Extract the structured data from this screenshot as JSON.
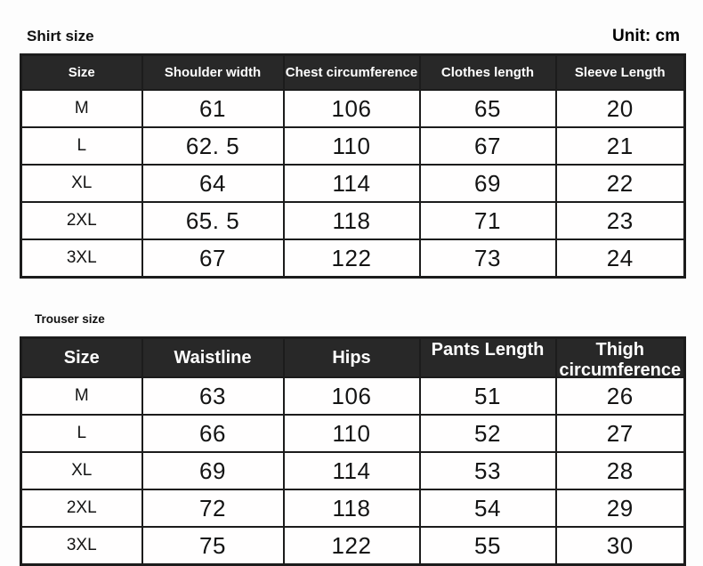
{
  "page": {
    "unit_label": "Unit: cm"
  },
  "colors": {
    "header_bg": "#282828",
    "header_text": "#ffffff",
    "border": "#1c1c1c",
    "body_text": "#141414",
    "page_bg": "#fdfdfd"
  },
  "tables": [
    {
      "id": "shirt",
      "title": "Shirt size",
      "columns": [
        "Size",
        "Shoulder width",
        "Chest circumference",
        "Clothes length",
        "Sleeve Length"
      ],
      "rows": [
        [
          "M",
          "61",
          "106",
          "65",
          "20"
        ],
        [
          "L",
          "62. 5",
          "110",
          "67",
          "21"
        ],
        [
          "XL",
          "64",
          "114",
          "69",
          "22"
        ],
        [
          "2XL",
          "65. 5",
          "118",
          "71",
          "23"
        ],
        [
          "3XL",
          "67",
          "122",
          "73",
          "24"
        ]
      ]
    },
    {
      "id": "trouser",
      "title": "Trouser size",
      "columns": [
        "Size",
        "Waistline",
        "Hips",
        "Pants Length",
        "Thigh circumference"
      ],
      "rows": [
        [
          "M",
          "63",
          "106",
          "51",
          "26"
        ],
        [
          "L",
          "66",
          "110",
          "52",
          "27"
        ],
        [
          "XL",
          "69",
          "114",
          "53",
          "28"
        ],
        [
          "2XL",
          "72",
          "118",
          "54",
          "29"
        ],
        [
          "3XL",
          "75",
          "122",
          "55",
          "30"
        ]
      ]
    }
  ]
}
